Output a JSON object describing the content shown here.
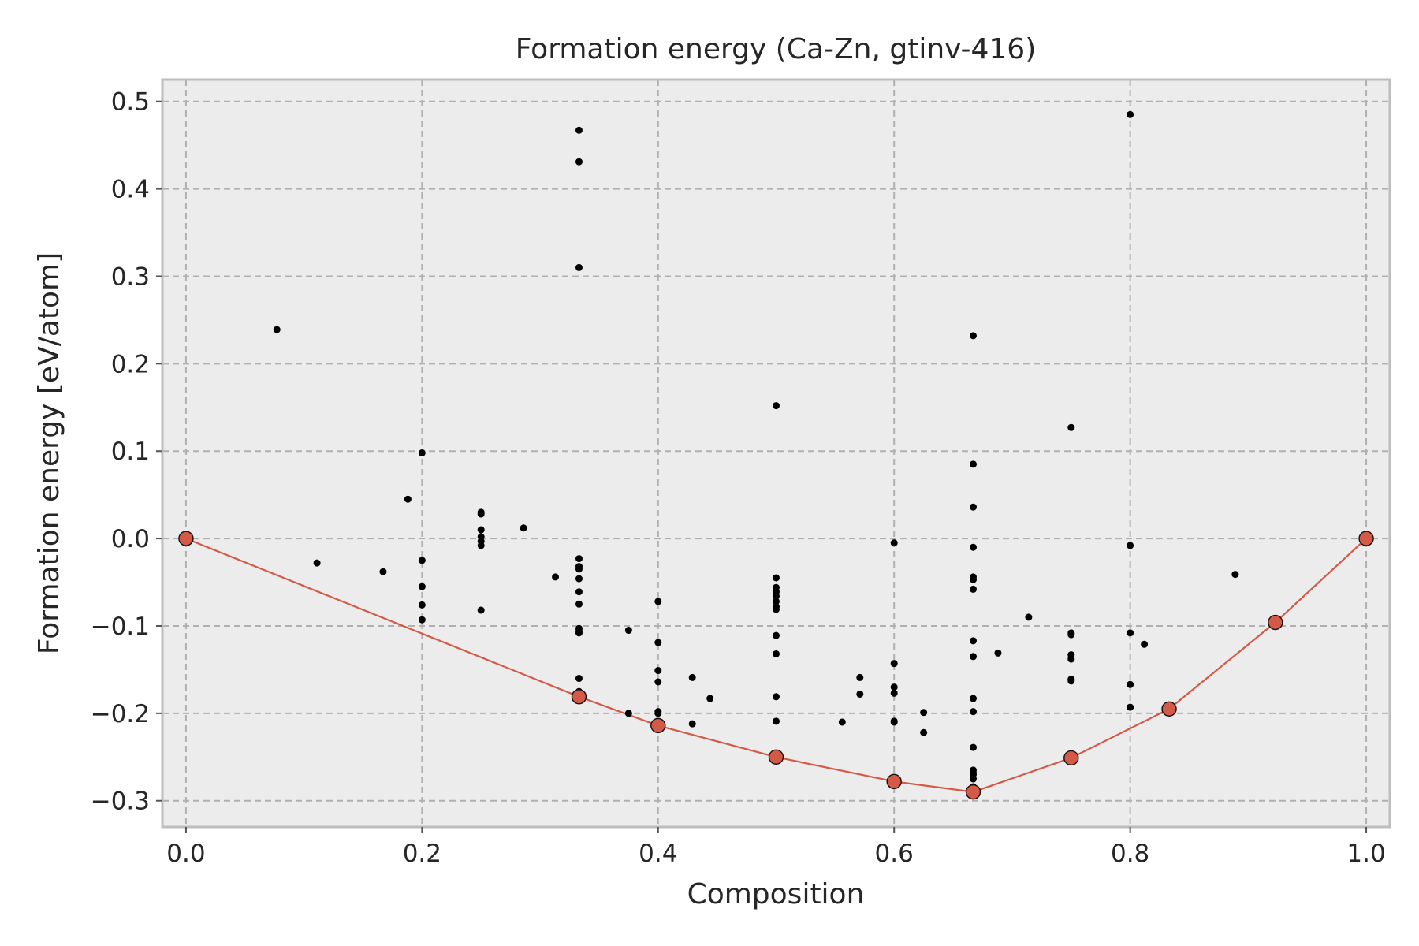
{
  "chart_data": {
    "type": "scatter",
    "title": "Formation energy (Ca-Zn, gtinv-416)",
    "xlabel": "Composition",
    "ylabel": "Formation energy [eV/atom]",
    "xlim": [
      -0.02,
      1.02
    ],
    "ylim": [
      -0.33,
      0.525
    ],
    "xticks": [
      0.0,
      0.2,
      0.4,
      0.6,
      0.8,
      1.0
    ],
    "xtick_labels": [
      "0.0",
      "0.2",
      "0.4",
      "0.6",
      "0.8",
      "1.0"
    ],
    "yticks": [
      0.5,
      0.4,
      0.3,
      0.2,
      0.1,
      0.0,
      -0.1,
      -0.2,
      -0.3
    ],
    "ytick_labels": [
      "0.5",
      "0.4",
      "0.3",
      "0.2",
      "0.1",
      "0.0",
      "−0.1",
      "−0.2",
      "−0.3"
    ],
    "grid": true,
    "colors": {
      "hull": "#d45a47",
      "points": "#000000",
      "background": "#ececec"
    },
    "series": [
      {
        "type": "scatter",
        "x": [
          0.077,
          0.111,
          0.167,
          0.188,
          0.2,
          0.2,
          0.2,
          0.2,
          0.2,
          0.25,
          0.25,
          0.25,
          0.25,
          0.25,
          0.25,
          0.25,
          0.286,
          0.313,
          0.333,
          0.333,
          0.333,
          0.333,
          0.333,
          0.333,
          0.333,
          0.333,
          0.333,
          0.333,
          0.333,
          0.333,
          0.333,
          0.333,
          0.375,
          0.375,
          0.4,
          0.4,
          0.4,
          0.4,
          0.4,
          0.4,
          0.429,
          0.429,
          0.444,
          0.5,
          0.5,
          0.5,
          0.5,
          0.5,
          0.5,
          0.5,
          0.5,
          0.5,
          0.5,
          0.5,
          0.5,
          0.5,
          0.5,
          0.556,
          0.571,
          0.571,
          0.6,
          0.6,
          0.6,
          0.6,
          0.6,
          0.6,
          0.625,
          0.625,
          0.667,
          0.667,
          0.667,
          0.667,
          0.667,
          0.667,
          0.667,
          0.667,
          0.667,
          0.667,
          0.667,
          0.667,
          0.667,
          0.667,
          0.667,
          0.667,
          0.667,
          0.688,
          0.714,
          0.75,
          0.75,
          0.75,
          0.75,
          0.75,
          0.75,
          0.75,
          0.8,
          0.8,
          0.8,
          0.8,
          0.8,
          0.812,
          0.889
        ],
        "y": [
          0.239,
          -0.028,
          -0.038,
          0.045,
          0.098,
          -0.025,
          -0.055,
          -0.076,
          -0.093,
          0.03,
          0.028,
          0.01,
          0.002,
          -0.003,
          -0.008,
          -0.082,
          0.012,
          -0.044,
          0.467,
          0.431,
          0.31,
          -0.023,
          -0.032,
          -0.035,
          -0.046,
          -0.061,
          -0.075,
          -0.103,
          -0.106,
          -0.108,
          -0.16,
          -0.175,
          -0.105,
          -0.2,
          -0.072,
          -0.119,
          -0.151,
          -0.164,
          -0.198,
          -0.2,
          -0.159,
          -0.212,
          -0.183,
          0.152,
          -0.045,
          -0.056,
          -0.061,
          -0.066,
          -0.072,
          -0.078,
          -0.081,
          -0.111,
          -0.132,
          -0.181,
          -0.209,
          -0.248,
          -0.25,
          -0.21,
          -0.159,
          -0.178,
          -0.005,
          -0.143,
          -0.17,
          -0.177,
          -0.209,
          -0.21,
          -0.199,
          -0.222,
          0.232,
          0.085,
          0.036,
          -0.01,
          -0.044,
          -0.047,
          -0.058,
          -0.117,
          -0.135,
          -0.183,
          -0.198,
          -0.239,
          -0.265,
          -0.268,
          -0.27,
          -0.275,
          -0.284,
          -0.131,
          -0.09,
          0.127,
          -0.108,
          -0.11,
          -0.133,
          -0.138,
          -0.161,
          -0.163,
          0.485,
          -0.008,
          -0.108,
          -0.167,
          -0.193,
          -0.121,
          -0.041
        ]
      },
      {
        "type": "line",
        "x": [
          0.0,
          0.333,
          0.4,
          0.5,
          0.6,
          0.667,
          0.75,
          0.833,
          0.923,
          1.0
        ],
        "y": [
          0.0,
          -0.181,
          -0.214,
          -0.25,
          -0.278,
          -0.29,
          -0.251,
          -0.195,
          -0.096,
          0.0
        ]
      }
    ]
  }
}
